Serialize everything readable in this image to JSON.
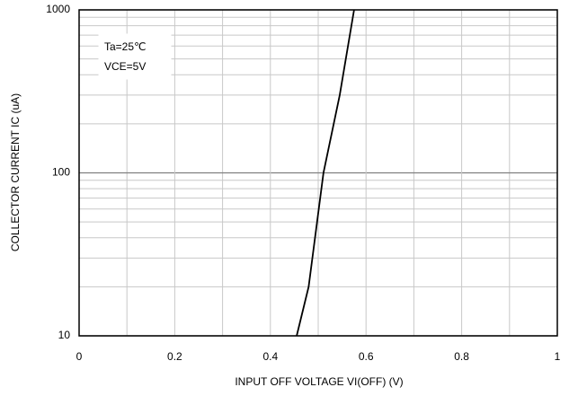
{
  "chart_data": {
    "type": "line",
    "log_y": true,
    "grid": true,
    "x_label": "INPUT OFF VOLTAGE  VI(OFF) (V)",
    "y_label": "COLLECTOR CURRENT  IC (uA)",
    "annotations": [
      "Ta=25℃",
      "VCE=5V"
    ],
    "x": [
      0.455,
      0.48,
      0.511,
      0.545,
      0.575
    ],
    "series": [
      {
        "color": "#000000",
        "values": [
          10,
          20,
          100,
          300,
          1000
        ]
      }
    ],
    "xlim": [
      0,
      1
    ],
    "xticks": [
      0,
      0.2,
      0.4,
      0.6,
      0.8,
      1
    ],
    "ylim": [
      10,
      1000
    ],
    "yticks": [
      10,
      100,
      1000
    ]
  }
}
